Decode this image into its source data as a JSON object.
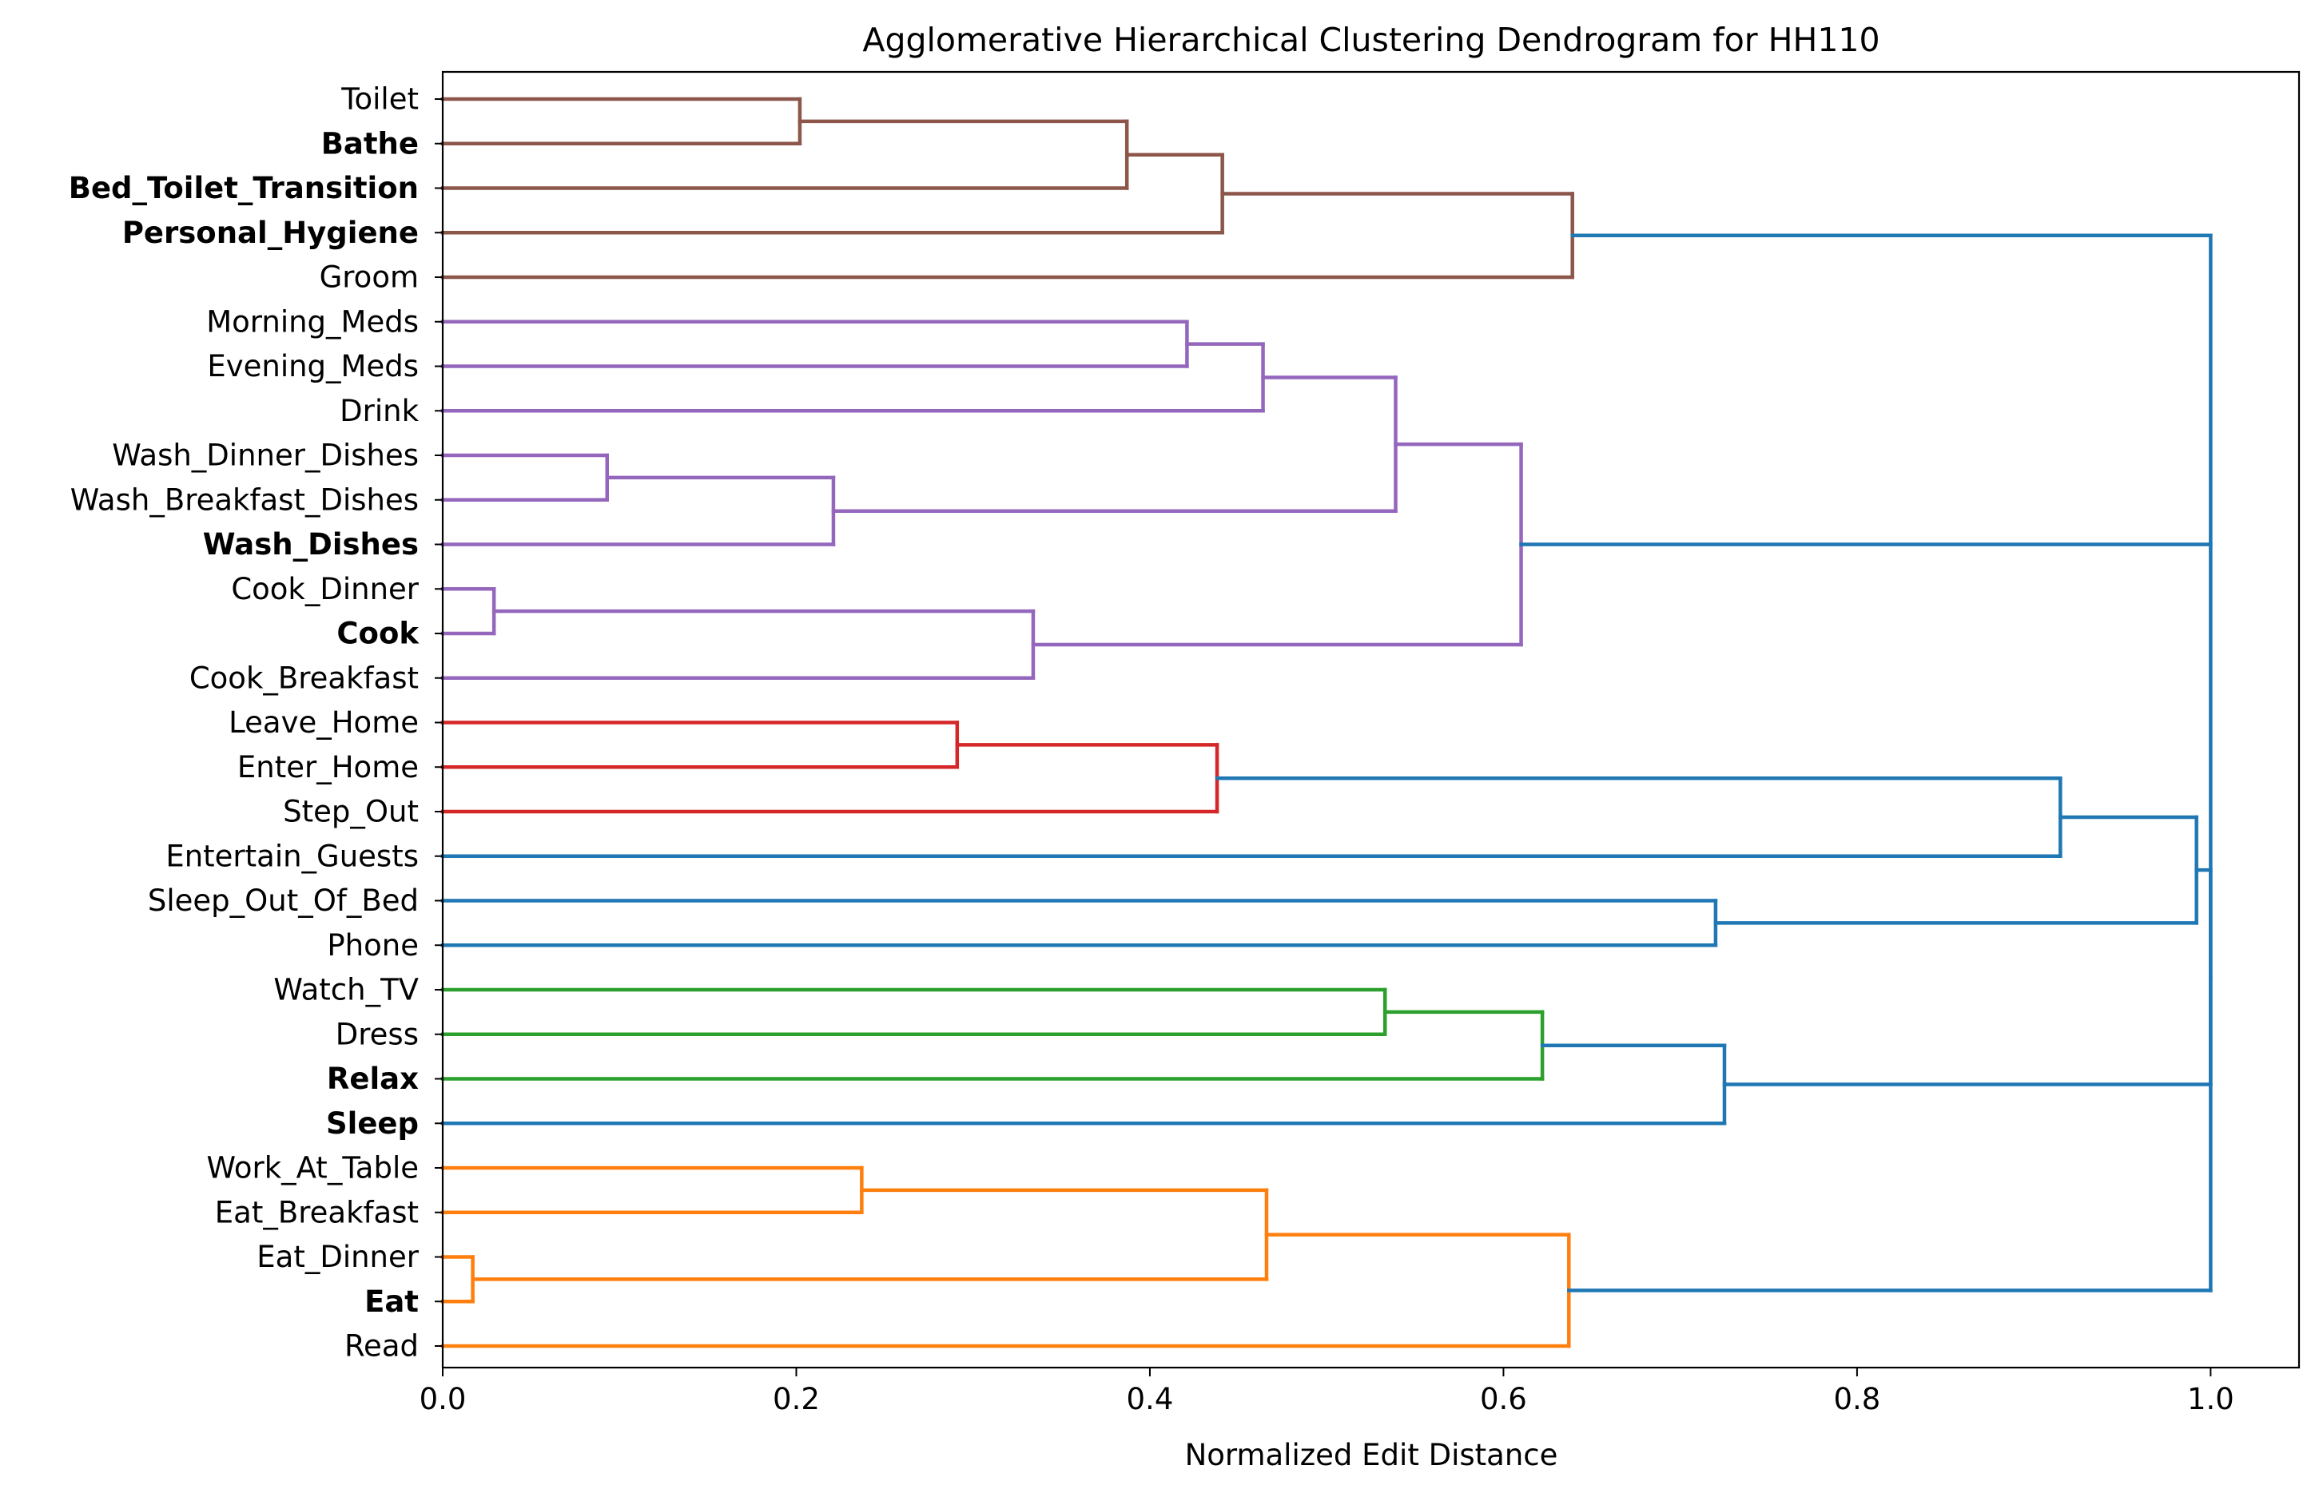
{
  "chart_data": {
    "type": "dendrogram",
    "title": "Agglomerative Hierarchical Clustering Dendrogram for HH110",
    "xlabel": "Normalized Edit Distance",
    "ylabel": "",
    "orientation": "left",
    "xlim": [
      0.0,
      1.05
    ],
    "xticks": [
      "0.0",
      "0.2",
      "0.4",
      "0.6",
      "0.8",
      "1.0"
    ],
    "grid": false,
    "leaves": [
      {
        "label": "Toilet",
        "bold": false
      },
      {
        "label": "Bathe",
        "bold": true
      },
      {
        "label": "Bed_Toilet_Transition",
        "bold": true
      },
      {
        "label": "Personal_Hygiene",
        "bold": true
      },
      {
        "label": "Groom",
        "bold": false
      },
      {
        "label": "Morning_Meds",
        "bold": false
      },
      {
        "label": "Evening_Meds",
        "bold": false
      },
      {
        "label": "Drink",
        "bold": false
      },
      {
        "label": "Wash_Dinner_Dishes",
        "bold": false
      },
      {
        "label": "Wash_Breakfast_Dishes",
        "bold": false
      },
      {
        "label": "Wash_Dishes",
        "bold": true
      },
      {
        "label": "Cook_Dinner",
        "bold": false
      },
      {
        "label": "Cook",
        "bold": true
      },
      {
        "label": "Cook_Breakfast",
        "bold": false
      },
      {
        "label": "Leave_Home",
        "bold": false
      },
      {
        "label": "Enter_Home",
        "bold": false
      },
      {
        "label": "Step_Out",
        "bold": false
      },
      {
        "label": "Entertain_Guests",
        "bold": false
      },
      {
        "label": "Sleep_Out_Of_Bed",
        "bold": false
      },
      {
        "label": "Phone",
        "bold": false
      },
      {
        "label": "Watch_TV",
        "bold": false
      },
      {
        "label": "Dress",
        "bold": false
      },
      {
        "label": "Relax",
        "bold": true
      },
      {
        "label": "Sleep",
        "bold": true
      },
      {
        "label": "Work_At_Table",
        "bold": false
      },
      {
        "label": "Eat_Breakfast",
        "bold": false
      },
      {
        "label": "Eat_Dinner",
        "bold": false
      },
      {
        "label": "Eat",
        "bold": true
      },
      {
        "label": "Read",
        "bold": false
      }
    ],
    "colors": {
      "brown": "#8c564b",
      "purple": "#9467bd",
      "red": "#d62728",
      "green": "#2ca02c",
      "orange": "#ff7f0e",
      "blue": "#1f77b4"
    },
    "merges": [
      {
        "id": "A1",
        "left": 0,
        "right": 1,
        "height": 0.202,
        "color": "brown"
      },
      {
        "id": "A2",
        "left": "A1",
        "right": 2,
        "height": 0.387,
        "color": "brown"
      },
      {
        "id": "A3",
        "left": "A2",
        "right": 3,
        "height": 0.441,
        "color": "brown"
      },
      {
        "id": "A4",
        "left": "A3",
        "right": 4,
        "height": 0.639,
        "color": "brown"
      },
      {
        "id": "B1",
        "left": 5,
        "right": 6,
        "height": 0.421,
        "color": "purple"
      },
      {
        "id": "B2",
        "left": "B1",
        "right": 7,
        "height": 0.464,
        "color": "purple"
      },
      {
        "id": "B3",
        "left": 8,
        "right": 9,
        "height": 0.093,
        "color": "purple"
      },
      {
        "id": "B4",
        "left": "B3",
        "right": 10,
        "height": 0.221,
        "color": "purple"
      },
      {
        "id": "B5",
        "left": "B2",
        "right": "B4",
        "height": 0.539,
        "color": "purple"
      },
      {
        "id": "B6",
        "left": 11,
        "right": 12,
        "height": 0.029,
        "color": "purple"
      },
      {
        "id": "B7",
        "left": "B6",
        "right": 13,
        "height": 0.334,
        "color": "purple"
      },
      {
        "id": "B8",
        "left": "B5",
        "right": "B7",
        "height": 0.61,
        "color": "purple"
      },
      {
        "id": "C1",
        "left": 14,
        "right": 15,
        "height": 0.291,
        "color": "red"
      },
      {
        "id": "C2",
        "left": "C1",
        "right": 16,
        "height": 0.438,
        "color": "red"
      },
      {
        "id": "C3",
        "left": "C2",
        "right": 17,
        "height": 0.915,
        "color": "blue"
      },
      {
        "id": "D1",
        "left": 18,
        "right": 19,
        "height": 0.72,
        "color": "blue"
      },
      {
        "id": "D2",
        "left": "C3",
        "right": "D1",
        "height": 0.992,
        "color": "blue"
      },
      {
        "id": "E1",
        "left": 20,
        "right": 21,
        "height": 0.533,
        "color": "green"
      },
      {
        "id": "E2",
        "left": "E1",
        "right": 22,
        "height": 0.622,
        "color": "green"
      },
      {
        "id": "E3",
        "left": "E2",
        "right": 23,
        "height": 0.725,
        "color": "blue"
      },
      {
        "id": "F1",
        "left": 24,
        "right": 25,
        "height": 0.237,
        "color": "orange"
      },
      {
        "id": "F2",
        "left": 26,
        "right": 27,
        "height": 0.017,
        "color": "orange"
      },
      {
        "id": "F3",
        "left": "F1",
        "right": "F2",
        "height": 0.466,
        "color": "orange"
      },
      {
        "id": "F4",
        "left": "F3",
        "right": 28,
        "height": 0.637,
        "color": "orange"
      },
      {
        "id": "G1",
        "left": "D2",
        "right": "E3",
        "height": 1.0,
        "color": "blue"
      }
    ],
    "root": {
      "id": "R",
      "children": [
        "A4",
        "B8",
        "G1",
        "F4"
      ],
      "height": 1.0,
      "color": "blue"
    }
  }
}
